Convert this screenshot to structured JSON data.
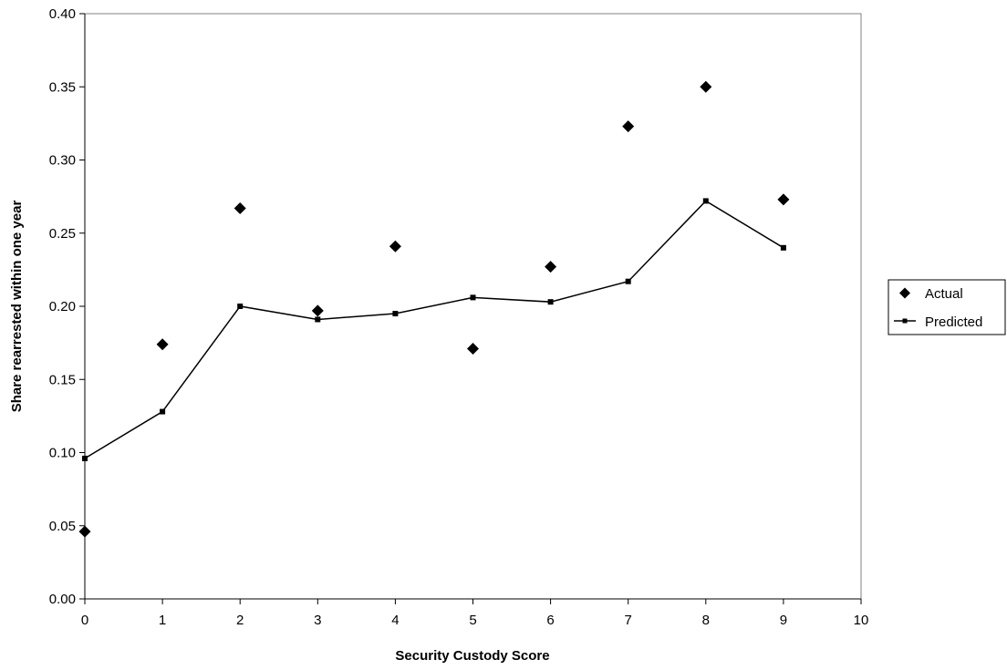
{
  "chart_data": {
    "type": "scatter",
    "title": "",
    "xlabel": "Security Custody Score",
    "ylabel": "Share rearrested within one year",
    "xlim": [
      0,
      10
    ],
    "ylim": [
      0.0,
      0.4
    ],
    "xticks": [
      "0",
      "1",
      "2",
      "3",
      "4",
      "5",
      "6",
      "7",
      "8",
      "9",
      "10"
    ],
    "yticks": [
      "0.00",
      "0.05",
      "0.10",
      "0.15",
      "0.20",
      "0.25",
      "0.30",
      "0.35",
      "0.40"
    ],
    "grid": false,
    "legend_position": "right",
    "series": [
      {
        "name": "Actual",
        "style": "markers-diamond",
        "color": "#000000",
        "x": [
          0,
          1,
          2,
          3,
          4,
          5,
          6,
          7,
          8,
          9
        ],
        "y": [
          0.046,
          0.174,
          0.267,
          0.197,
          0.241,
          0.171,
          0.227,
          0.323,
          0.35,
          0.273
        ]
      },
      {
        "name": "Predicted",
        "style": "line-square-markers",
        "color": "#000000",
        "x": [
          0,
          1,
          2,
          3,
          4,
          5,
          6,
          7,
          8,
          9
        ],
        "y": [
          0.096,
          0.128,
          0.2,
          0.191,
          0.195,
          0.206,
          0.203,
          0.217,
          0.272,
          0.24
        ]
      }
    ]
  }
}
